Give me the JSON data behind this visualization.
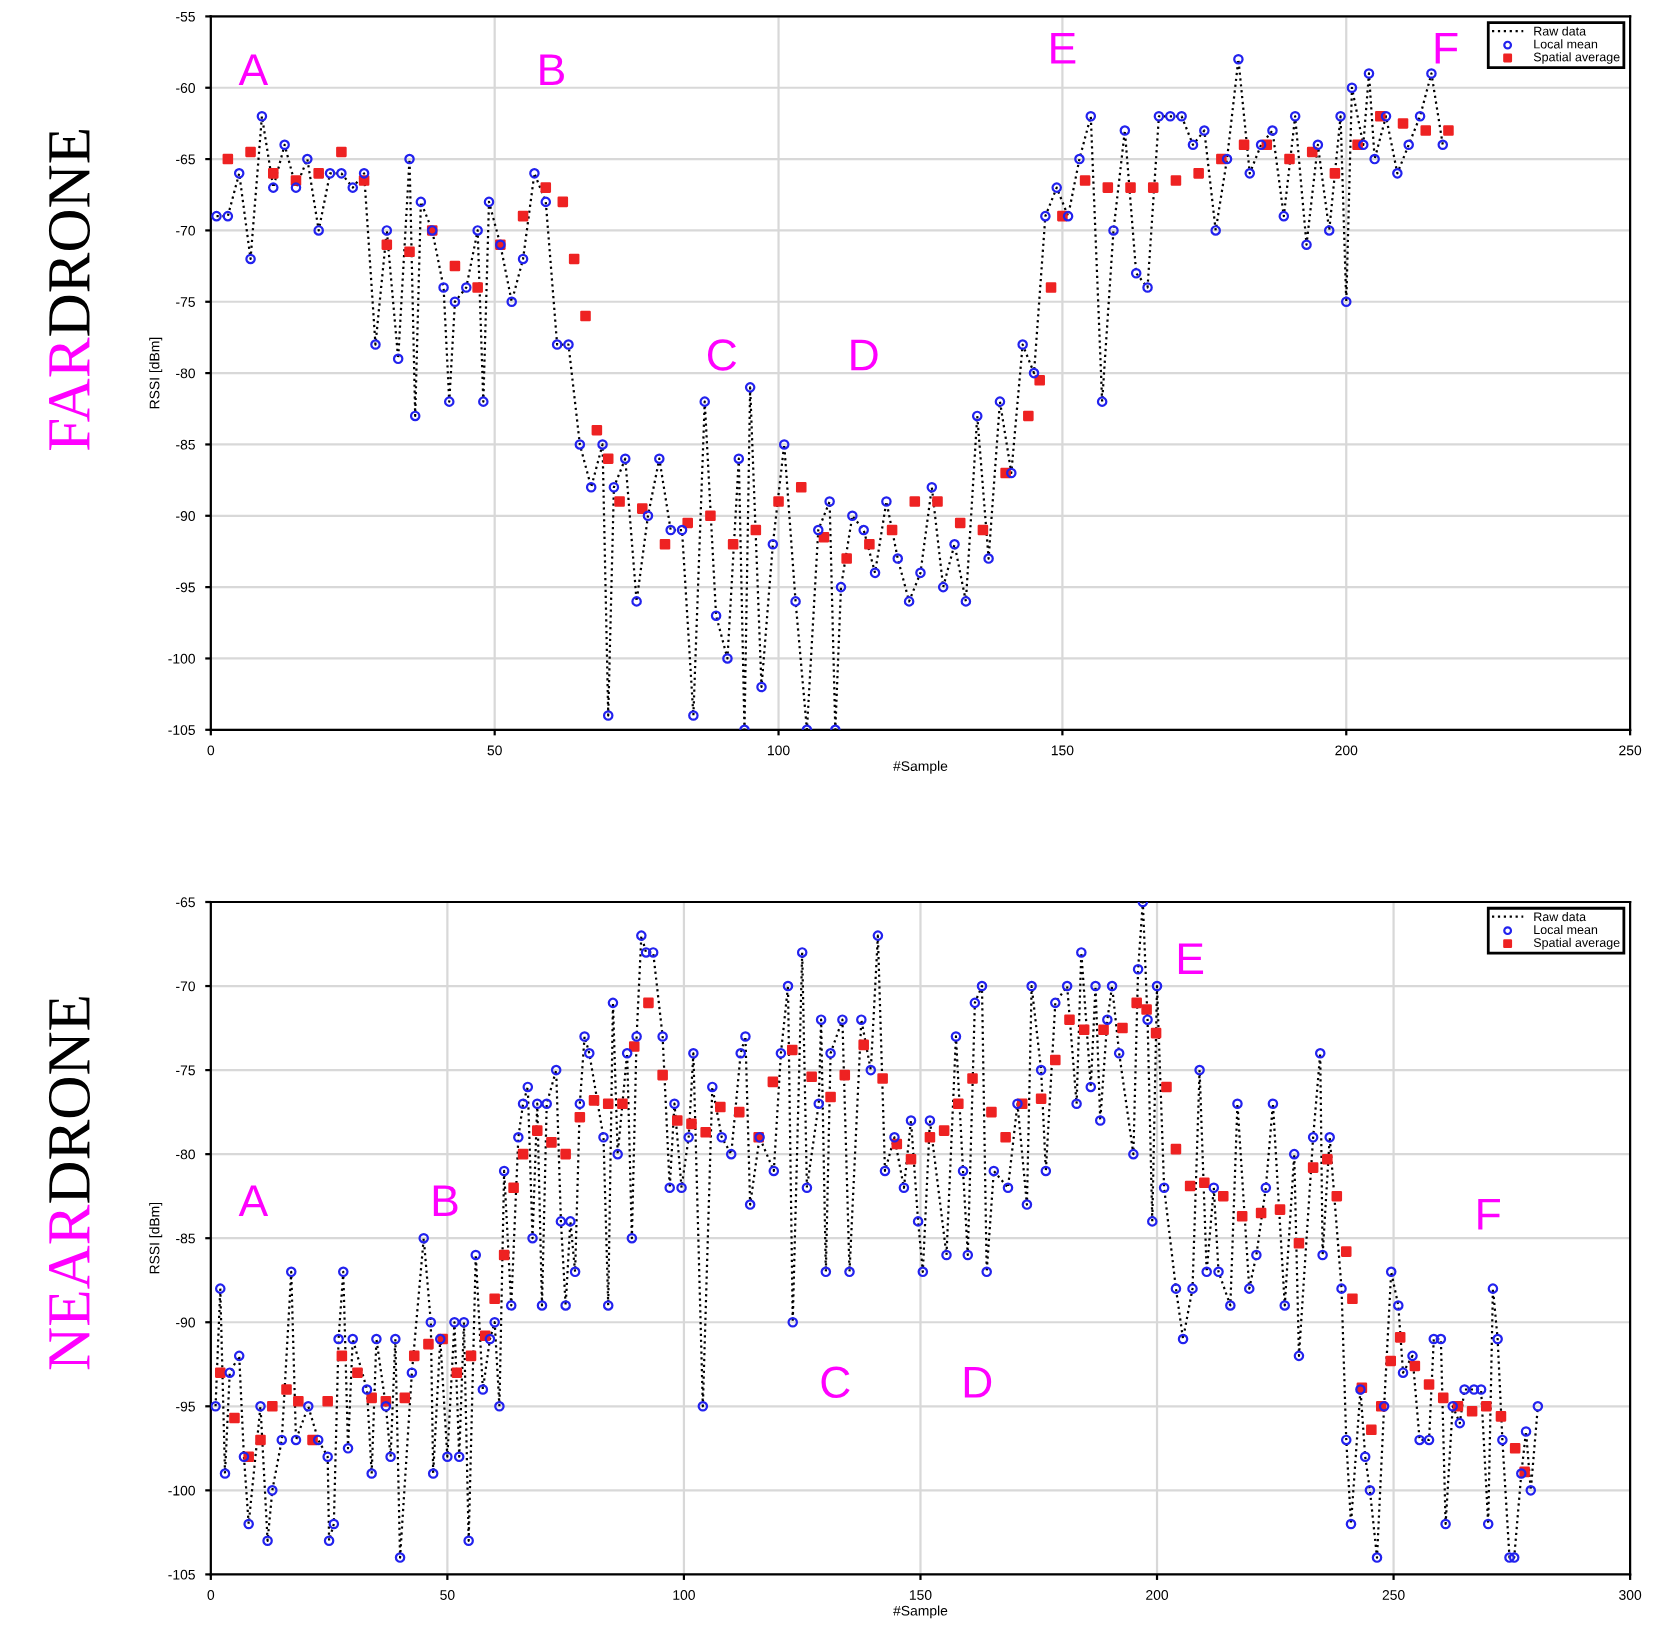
{
  "chart_data": [
    {
      "type": "line",
      "title": "FAR DRONE",
      "xlabel": "#Sample",
      "ylabel": "RSSI [dBm]",
      "xlim": [
        0,
        250
      ],
      "ylim": [
        -105,
        -55
      ],
      "xticks": [
        0,
        50,
        100,
        150,
        200,
        250
      ],
      "yticks": [
        -105,
        -100,
        -95,
        -90,
        -85,
        -80,
        -75,
        -70,
        -65,
        -60,
        -55
      ],
      "grid": true,
      "legend": "top right",
      "annotations": [
        "A",
        "B",
        "C",
        "D",
        "E",
        "F"
      ],
      "series": [
        {
          "name": "Raw data",
          "type": "line",
          "color": "#000000",
          "line_style": "dotted",
          "marker": "none",
          "x": [
            1,
            3,
            5,
            7,
            9,
            11,
            13,
            15,
            17,
            19,
            21,
            23,
            25,
            27,
            29,
            31,
            33,
            35,
            36,
            37,
            39,
            41,
            42,
            43,
            45,
            47,
            48,
            49,
            51,
            53,
            55,
            57,
            59,
            61,
            63,
            65,
            67,
            69,
            70,
            71,
            73,
            75,
            77,
            79,
            81,
            83,
            85,
            87,
            89,
            91,
            93,
            94,
            95,
            97,
            99,
            101,
            103,
            105,
            107,
            109,
            110,
            111,
            113,
            115,
            117,
            119,
            121,
            123,
            125,
            127,
            129,
            131,
            133,
            135,
            137,
            139,
            141,
            143,
            145,
            147,
            149,
            151,
            153,
            155,
            157,
            159,
            161,
            163,
            165,
            167,
            169,
            171,
            173,
            175,
            177,
            179,
            181,
            183,
            185,
            187,
            189,
            191,
            193,
            195,
            197,
            199,
            200,
            201,
            203,
            204,
            205,
            207,
            209,
            211,
            213,
            215,
            217
          ],
          "values": [
            -69,
            -69,
            -66,
            -72,
            -62,
            -67,
            -64,
            -67,
            -65,
            -70,
            -66,
            -66,
            -67,
            -66,
            -78,
            -70,
            -79,
            -65,
            -83,
            -68,
            -70,
            -74,
            -82,
            -75,
            -74,
            -70,
            -82,
            -68,
            -71,
            -75,
            -72,
            -66,
            -68,
            -78,
            -78,
            -85,
            -88,
            -85,
            -104,
            -88,
            -86,
            -96,
            -90,
            -86,
            -91,
            -91,
            -104,
            -82,
            -97,
            -100,
            -86,
            -105,
            -81,
            -102,
            -92,
            -85,
            -96,
            -105,
            -91,
            -89,
            -105,
            -95,
            -90,
            -91,
            -94,
            -89,
            -93,
            -96,
            -94,
            -88,
            -95,
            -92,
            -96,
            -83,
            -93,
            -82,
            -87,
            -78,
            -80,
            -69,
            -67,
            -69,
            -65,
            -62,
            -82,
            -70,
            -63,
            -73,
            -74,
            -62,
            -62,
            -62,
            -64,
            -63,
            -70,
            -65,
            -58,
            -66,
            -64,
            -63,
            -69,
            -62,
            -71,
            -64,
            -70,
            -62,
            -75,
            -60,
            -64,
            -59,
            -65,
            -62,
            -66,
            -64,
            -62,
            -59,
            -64
          ]
        },
        {
          "name": "Local mean",
          "type": "scatter",
          "color": "#2222ee",
          "marker": "circle",
          "x": [
            1,
            3,
            5,
            7,
            9,
            11,
            13,
            15,
            17,
            19,
            21,
            23,
            25,
            27,
            29,
            31,
            33,
            35,
            36,
            37,
            39,
            41,
            42,
            43,
            45,
            47,
            48,
            49,
            51,
            53,
            55,
            57,
            59,
            61,
            63,
            65,
            67,
            69,
            70,
            71,
            73,
            75,
            77,
            79,
            81,
            83,
            85,
            87,
            89,
            91,
            93,
            94,
            95,
            97,
            99,
            101,
            103,
            105,
            107,
            109,
            110,
            111,
            113,
            115,
            117,
            119,
            121,
            123,
            125,
            127,
            129,
            131,
            133,
            135,
            137,
            139,
            141,
            143,
            145,
            147,
            149,
            151,
            153,
            155,
            157,
            159,
            161,
            163,
            165,
            167,
            169,
            171,
            173,
            175,
            177,
            179,
            181,
            183,
            185,
            187,
            189,
            191,
            193,
            195,
            197,
            199,
            200,
            201,
            203,
            204,
            205,
            207,
            209,
            211,
            213,
            215,
            217
          ],
          "values": [
            -69,
            -69,
            -66,
            -72,
            -62,
            -67,
            -64,
            -67,
            -65,
            -70,
            -66,
            -66,
            -67,
            -66,
            -78,
            -70,
            -79,
            -65,
            -83,
            -68,
            -70,
            -74,
            -82,
            -75,
            -74,
            -70,
            -82,
            -68,
            -71,
            -75,
            -72,
            -66,
            -68,
            -78,
            -78,
            -85,
            -88,
            -85,
            -104,
            -88,
            -86,
            -96,
            -90,
            -86,
            -91,
            -91,
            -104,
            -82,
            -97,
            -100,
            -86,
            -105,
            -81,
            -102,
            -92,
            -85,
            -96,
            -105,
            -91,
            -89,
            -105,
            -95,
            -90,
            -91,
            -94,
            -89,
            -93,
            -96,
            -94,
            -88,
            -95,
            -92,
            -96,
            -83,
            -93,
            -82,
            -87,
            -78,
            -80,
            -69,
            -67,
            -69,
            -65,
            -62,
            -82,
            -70,
            -63,
            -73,
            -74,
            -62,
            -62,
            -62,
            -64,
            -63,
            -70,
            -65,
            -58,
            -66,
            -64,
            -63,
            -69,
            -62,
            -71,
            -64,
            -70,
            -62,
            -75,
            -60,
            -64,
            -59,
            -65,
            -62,
            -66,
            -64,
            -62,
            -59,
            -64
          ]
        },
        {
          "name": "Spatial average",
          "type": "scatter",
          "color": "#ee2222",
          "marker": "square",
          "x": [
            3,
            7,
            11,
            15,
            19,
            23,
            27,
            31,
            35,
            39,
            43,
            47,
            51,
            55,
            59,
            62,
            64,
            66,
            68,
            70,
            72,
            76,
            80,
            84,
            88,
            92,
            96,
            100,
            104,
            108,
            112,
            116,
            120,
            124,
            128,
            132,
            136,
            140,
            144,
            146,
            148,
            150,
            154,
            158,
            162,
            166,
            170,
            174,
            178,
            182,
            186,
            190,
            194,
            198,
            202,
            206,
            210,
            214,
            218
          ],
          "values": [
            -65,
            -64.5,
            -66,
            -66.5,
            -66,
            -64.5,
            -66.5,
            -71,
            -71.5,
            -70,
            -72.5,
            -74,
            -71,
            -69,
            -67,
            -68,
            -72,
            -76,
            -84,
            -86,
            -89,
            -89.5,
            -92,
            -90.5,
            -90,
            -92,
            -91,
            -89,
            -88,
            -91.5,
            -93,
            -92,
            -91,
            -89,
            -89,
            -90.5,
            -91,
            -87,
            -83,
            -80.5,
            -74,
            -69,
            -66.5,
            -67,
            -67,
            -67,
            -66.5,
            -66,
            -65,
            -64,
            -64,
            -65,
            -64.5,
            -66,
            -64,
            -62,
            -62.5,
            -63,
            -63
          ]
        }
      ]
    },
    {
      "type": "line",
      "title": "NEAR DRONE",
      "xlabel": "#Sample",
      "ylabel": "RSSI [dBm]",
      "xlim": [
        0,
        300
      ],
      "ylim": [
        -105,
        -65
      ],
      "xticks": [
        0,
        50,
        100,
        150,
        200,
        250,
        300
      ],
      "yticks": [
        -105,
        -100,
        -95,
        -90,
        -85,
        -80,
        -75,
        -70,
        -65
      ],
      "grid": true,
      "legend": "top right",
      "annotations": [
        "A",
        "B",
        "C",
        "D",
        "E",
        "F"
      ],
      "series": [
        {
          "name": "Raw data",
          "type": "line",
          "color": "#000000",
          "line_style": "dotted",
          "marker": "none",
          "x": [
            1,
            2,
            3,
            4,
            6,
            7,
            8,
            10.5,
            12,
            13,
            15,
            17,
            18,
            20.6,
            22.7,
            24.7,
            25,
            26,
            27,
            28,
            29,
            30,
            33,
            34,
            35,
            37,
            38,
            39,
            40,
            42.5,
            45,
            46.5,
            47,
            48.5,
            50,
            51.5,
            52.5,
            53.5,
            54.5,
            56,
            57.5,
            59,
            60,
            61,
            62,
            63.5,
            65,
            66,
            67,
            68,
            69,
            70,
            71,
            73,
            74,
            75,
            76,
            77,
            78,
            79,
            80,
            83,
            84,
            85,
            86,
            88,
            89,
            90,
            91,
            92,
            93.5,
            95.5,
            97,
            98,
            99.5,
            101,
            102,
            104,
            106,
            108,
            110,
            112,
            113,
            114,
            116,
            119,
            120.5,
            122,
            123,
            125,
            126,
            128.5,
            129,
            130,
            131,
            133.5,
            135,
            137.5,
            139.5,
            141,
            142.5,
            144.5,
            146.5,
            148,
            149.5,
            150.5,
            152,
            155.5,
            157.5,
            159,
            160,
            161.5,
            163,
            164,
            165.5,
            168.5,
            170.5,
            172.5,
            173.5,
            175.5,
            176.5,
            178.5,
            181,
            183,
            184,
            186,
            187,
            188,
            189.5,
            190.5,
            192,
            195,
            196,
            197,
            198,
            199,
            200,
            201.5,
            204,
            205.5,
            207.5,
            209,
            210.5,
            212,
            213,
            215.5,
            217,
            219.5,
            221,
            223,
            224.5,
            227,
            229,
            230,
            233,
            234.5,
            235,
            236.5,
            239,
            240,
            241,
            243,
            244,
            245,
            246.5,
            248,
            249.5,
            251,
            252,
            254,
            255.5,
            257.5,
            258.5,
            260,
            261,
            262.5,
            264,
            265,
            267,
            268.5,
            270,
            271,
            272,
            273,
            274.5,
            275.5,
            277,
            278,
            279,
            280.5
          ],
          "values": [
            -95,
            -88,
            -99,
            -93,
            -92,
            -98,
            -102,
            -95,
            -103,
            -100,
            -97,
            -87,
            -97,
            -95,
            -97,
            -98,
            -103,
            -102,
            -91,
            -87,
            -97.5,
            -91,
            -94,
            -99,
            -91,
            -95,
            -98,
            -91,
            -104,
            -93,
            -85,
            -90,
            -99,
            -91,
            -98,
            -90,
            -98,
            -90,
            -103,
            -86,
            -94,
            -91,
            -90,
            -95,
            -81,
            -89,
            -79,
            -77,
            -76,
            -85,
            -77,
            -89,
            -77,
            -75,
            -84,
            -89,
            -84,
            -87,
            -77,
            -73,
            -74,
            -79,
            -89,
            -71,
            -80,
            -74,
            -85,
            -73,
            -67,
            -68,
            -68,
            -73,
            -82,
            -77,
            -82,
            -79,
            -74,
            -95,
            -76,
            -79,
            -80,
            -74,
            -73,
            -83,
            -79,
            -81,
            -74,
            -70,
            -90,
            -68,
            -82,
            -77,
            -72,
            -87,
            -74,
            -72,
            -87,
            -72,
            -75,
            -67,
            -81,
            -79,
            -82,
            -78,
            -84,
            -87,
            -78,
            -86,
            -73,
            -81,
            -86,
            -71,
            -70,
            -87,
            -81,
            -82,
            -77,
            -83,
            -70,
            -75,
            -81,
            -71,
            -70,
            -77,
            -68,
            -76,
            -70,
            -78,
            -72,
            -70,
            -74,
            -80,
            -69,
            -65,
            -72,
            -84,
            -70,
            -82,
            -88,
            -91,
            -88,
            -75,
            -87,
            -82,
            -87,
            -89,
            -77,
            -88,
            -86,
            -82,
            -77,
            -89,
            -80,
            -92,
            -79,
            -74,
            -86,
            -79,
            -88,
            -97,
            -102,
            -94,
            -98,
            -100,
            -104,
            -95,
            -87,
            -89,
            -93,
            -92,
            -97,
            -97,
            -91,
            -91,
            -102,
            -95,
            -96,
            -94,
            -94,
            -94,
            -102,
            -88,
            -91,
            -97,
            -104,
            -104,
            -99,
            -96.5,
            -100,
            -95
          ]
        },
        {
          "name": "Local mean",
          "type": "scatter",
          "color": "#2222ee",
          "marker": "circle",
          "x": [
            1,
            2,
            3,
            4,
            6,
            7,
            8,
            10.5,
            12,
            13,
            15,
            17,
            18,
            20.6,
            22.7,
            24.7,
            25,
            26,
            27,
            28,
            29,
            30,
            33,
            34,
            35,
            37,
            38,
            39,
            40,
            42.5,
            45,
            46.5,
            47,
            48.5,
            50,
            51.5,
            52.5,
            53.5,
            54.5,
            56,
            57.5,
            59,
            60,
            61,
            62,
            63.5,
            65,
            66,
            67,
            68,
            69,
            70,
            71,
            73,
            74,
            75,
            76,
            77,
            78,
            79,
            80,
            83,
            84,
            85,
            86,
            88,
            89,
            90,
            91,
            92,
            93.5,
            95.5,
            97,
            98,
            99.5,
            101,
            102,
            104,
            106,
            108,
            110,
            112,
            113,
            114,
            116,
            119,
            120.5,
            122,
            123,
            125,
            126,
            128.5,
            129,
            130,
            131,
            133.5,
            135,
            137.5,
            139.5,
            141,
            142.5,
            144.5,
            146.5,
            148,
            149.5,
            150.5,
            152,
            155.5,
            157.5,
            159,
            160,
            161.5,
            163,
            164,
            165.5,
            168.5,
            170.5,
            172.5,
            173.5,
            175.5,
            176.5,
            178.5,
            181,
            183,
            184,
            186,
            187,
            188,
            189.5,
            190.5,
            192,
            195,
            196,
            197,
            198,
            199,
            200,
            201.5,
            204,
            205.5,
            207.5,
            209,
            210.5,
            212,
            213,
            215.5,
            217,
            219.5,
            221,
            223,
            224.5,
            227,
            229,
            230,
            233,
            234.5,
            235,
            236.5,
            239,
            240,
            241,
            243,
            244,
            245,
            246.5,
            248,
            249.5,
            251,
            252,
            254,
            255.5,
            257.5,
            258.5,
            260,
            261,
            262.5,
            264,
            265,
            267,
            268.5,
            270,
            271,
            272,
            273,
            274.5,
            275.5,
            277,
            278,
            279,
            280.5
          ],
          "values": [
            -95,
            -88,
            -99,
            -93,
            -92,
            -98,
            -102,
            -95,
            -103,
            -100,
            -97,
            -87,
            -97,
            -95,
            -97,
            -98,
            -103,
            -102,
            -91,
            -87,
            -97.5,
            -91,
            -94,
            -99,
            -91,
            -95,
            -98,
            -91,
            -104,
            -93,
            -85,
            -90,
            -99,
            -91,
            -98,
            -90,
            -98,
            -90,
            -103,
            -86,
            -94,
            -91,
            -90,
            -95,
            -81,
            -89,
            -79,
            -77,
            -76,
            -85,
            -77,
            -89,
            -77,
            -75,
            -84,
            -89,
            -84,
            -87,
            -77,
            -73,
            -74,
            -79,
            -89,
            -71,
            -80,
            -74,
            -85,
            -73,
            -67,
            -68,
            -68,
            -73,
            -82,
            -77,
            -82,
            -79,
            -74,
            -95,
            -76,
            -79,
            -80,
            -74,
            -73,
            -83,
            -79,
            -81,
            -74,
            -70,
            -90,
            -68,
            -82,
            -77,
            -72,
            -87,
            -74,
            -72,
            -87,
            -72,
            -75,
            -67,
            -81,
            -79,
            -82,
            -78,
            -84,
            -87,
            -78,
            -86,
            -73,
            -81,
            -86,
            -71,
            -70,
            -87,
            -81,
            -82,
            -77,
            -83,
            -70,
            -75,
            -81,
            -71,
            -70,
            -77,
            -68,
            -76,
            -70,
            -78,
            -72,
            -70,
            -74,
            -80,
            -69,
            -65,
            -72,
            -84,
            -70,
            -82,
            -88,
            -91,
            -88,
            -75,
            -87,
            -82,
            -87,
            -89,
            -77,
            -88,
            -86,
            -82,
            -77,
            -89,
            -80,
            -92,
            -79,
            -74,
            -86,
            -79,
            -88,
            -97,
            -102,
            -94,
            -98,
            -100,
            -104,
            -95,
            -87,
            -89,
            -93,
            -92,
            -97,
            -97,
            -91,
            -91,
            -102,
            -95,
            -96,
            -94,
            -94,
            -94,
            -102,
            -88,
            -91,
            -97,
            -104,
            -104,
            -99,
            -96.5,
            -100,
            -95
          ]
        },
        {
          "name": "Spatial average",
          "type": "scatter",
          "color": "#ee2222",
          "marker": "square",
          "x": [
            2,
            5,
            8,
            10.5,
            13,
            16,
            18.5,
            21.5,
            24.7,
            27.7,
            31,
            34,
            37,
            41,
            43,
            46,
            49,
            52,
            55,
            58,
            60,
            62,
            64,
            66,
            69,
            72,
            75,
            78,
            81,
            84,
            87,
            89.5,
            92.5,
            95.5,
            98.6,
            101.6,
            104.6,
            107.7,
            111.7,
            115.8,
            118.8,
            122.9,
            127,
            131,
            134,
            138,
            142,
            145,
            148,
            152,
            155,
            158,
            161,
            165,
            168,
            171.5,
            175.5,
            178.5,
            181.5,
            184.6,
            188.7,
            192.7,
            195.7,
            197.8,
            199.8,
            202,
            204,
            207,
            210,
            214,
            218,
            222,
            226,
            230,
            233,
            236,
            238,
            240,
            241.3,
            243.3,
            245.3,
            247.4,
            249.4,
            251.4,
            254.5,
            257.5,
            260.5,
            263.6,
            266.6,
            269.6,
            272.7,
            275.7,
            277.7
          ],
          "values": [
            -93,
            -95.7,
            -98,
            -97,
            -95,
            -94,
            -94.7,
            -97,
            -94.7,
            -92,
            -93,
            -94.5,
            -94.7,
            -94.5,
            -92,
            -91.3,
            -91,
            -93,
            -92,
            -90.8,
            -88.6,
            -86,
            -82,
            -80,
            -78.6,
            -79.3,
            -80,
            -77.8,
            -76.8,
            -77,
            -77,
            -73.6,
            -71,
            -75.3,
            -78,
            -78.2,
            -78.7,
            -77.2,
            -77.5,
            -79,
            -75.7,
            -73.8,
            -75.4,
            -76.6,
            -75.3,
            -73.5,
            -75.5,
            -79.4,
            -80.3,
            -79,
            -78.6,
            -77,
            -75.5,
            -77.5,
            -79,
            -77,
            -76.7,
            -74.4,
            -72,
            -72.6,
            -72.6,
            -72.5,
            -71,
            -71.4,
            -72.8,
            -76,
            -79.7,
            -81.9,
            -81.7,
            -82.5,
            -83.7,
            -83.5,
            -83.3,
            -85.3,
            -80.8,
            -80.3,
            -82.5,
            -85.8,
            -88.6,
            -93.9,
            -96.4,
            -95,
            -92.3,
            -90.9,
            -92.6,
            -93.7,
            -94.5,
            -95,
            -95.3,
            -95,
            -95.6,
            -97.5,
            -98.9
          ]
        }
      ]
    }
  ]
}
